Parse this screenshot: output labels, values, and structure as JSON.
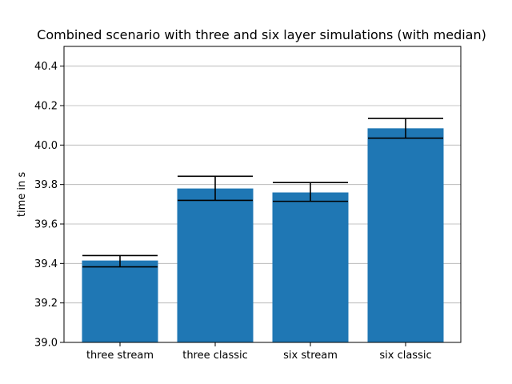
{
  "chart_data": {
    "type": "bar",
    "title": "Combined scenario with three and six layer simulations (with median)",
    "xlabel": "",
    "ylabel": "time in s",
    "categories": [
      "three stream",
      "three classic",
      "six stream",
      "six classic"
    ],
    "values": [
      39.415,
      39.78,
      39.76,
      40.085
    ],
    "error_low": [
      39.383,
      39.72,
      39.715,
      40.035
    ],
    "error_high": [
      39.44,
      39.842,
      39.81,
      40.135
    ],
    "ylim": [
      39.0,
      40.5
    ],
    "yticks": [
      39.0,
      39.2,
      39.4,
      39.6,
      39.8,
      40.0,
      40.2,
      40.4
    ],
    "ytick_labels": [
      "39.0",
      "39.2",
      "39.4",
      "39.6",
      "39.8",
      "40.0",
      "40.2",
      "40.4"
    ],
    "grid": "y",
    "bar_color": "#1f77b4"
  }
}
